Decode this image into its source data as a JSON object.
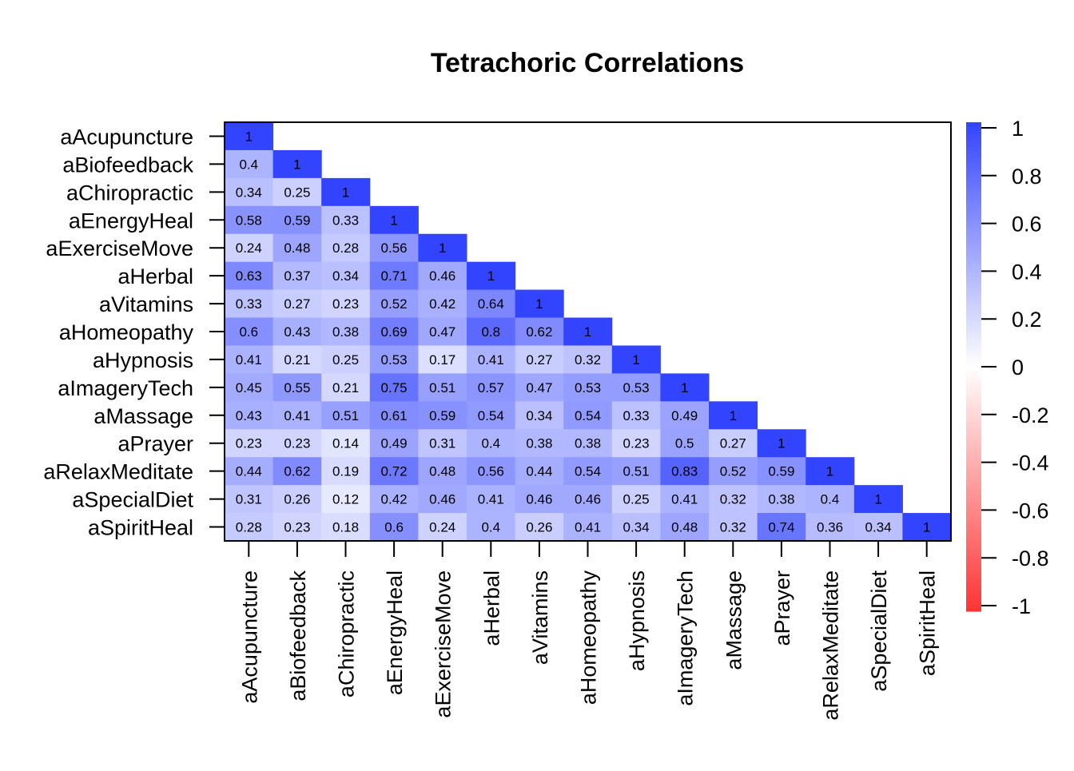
{
  "chart_data": {
    "type": "heatmap",
    "title": "Tetrachoric Correlations",
    "variables": [
      "aAcupuncture",
      "aBiofeedback",
      "aChiropractic",
      "aEnergyHeal",
      "aExerciseMove",
      "aHerbal",
      "aVitamins",
      "aHomeopathy",
      "aHypnosis",
      "aImageryTech",
      "aMassage",
      "aPrayer",
      "aRelaxMeditate",
      "aSpecialDiet",
      "aSpiritHeal"
    ],
    "matrix": [
      [
        1
      ],
      [
        0.4,
        1
      ],
      [
        0.34,
        0.25,
        1
      ],
      [
        0.58,
        0.59,
        0.33,
        1
      ],
      [
        0.24,
        0.48,
        0.28,
        0.56,
        1
      ],
      [
        0.63,
        0.37,
        0.34,
        0.71,
        0.46,
        1
      ],
      [
        0.33,
        0.27,
        0.23,
        0.52,
        0.42,
        0.64,
        1
      ],
      [
        0.6,
        0.43,
        0.38,
        0.69,
        0.47,
        0.8,
        0.62,
        1
      ],
      [
        0.41,
        0.21,
        0.25,
        0.53,
        0.17,
        0.41,
        0.27,
        0.32,
        1
      ],
      [
        0.45,
        0.55,
        0.21,
        0.75,
        0.51,
        0.57,
        0.47,
        0.53,
        0.53,
        1
      ],
      [
        0.43,
        0.41,
        0.51,
        0.61,
        0.59,
        0.54,
        0.34,
        0.54,
        0.33,
        0.49,
        1
      ],
      [
        0.23,
        0.23,
        0.14,
        0.49,
        0.31,
        0.4,
        0.38,
        0.38,
        0.23,
        0.5,
        0.27,
        1
      ],
      [
        0.44,
        0.62,
        0.19,
        0.72,
        0.48,
        0.56,
        0.44,
        0.54,
        0.51,
        0.83,
        0.52,
        0.59,
        1
      ],
      [
        0.31,
        0.26,
        0.12,
        0.42,
        0.46,
        0.41,
        0.46,
        0.46,
        0.25,
        0.41,
        0.32,
        0.38,
        0.4,
        1
      ],
      [
        0.28,
        0.23,
        0.18,
        0.6,
        0.24,
        0.4,
        0.26,
        0.41,
        0.34,
        0.48,
        0.32,
        0.74,
        0.36,
        0.34,
        1
      ]
    ],
    "scale": {
      "range": [
        -1,
        1
      ],
      "ticks": [
        1,
        0.8,
        0.6,
        0.4,
        0.2,
        0,
        -0.2,
        -0.4,
        -0.6,
        -0.8,
        -1
      ],
      "tick_labels": [
        "1",
        "0.8",
        "0.6",
        "0.4",
        "0.2",
        "0",
        "-0.2",
        "-0.4",
        "-0.6",
        "-0.8",
        "-1"
      ],
      "high_color": "#3344ff",
      "mid_color": "#ffffff",
      "low_color": "#ff3333"
    },
    "legend": "right",
    "grid": false
  }
}
